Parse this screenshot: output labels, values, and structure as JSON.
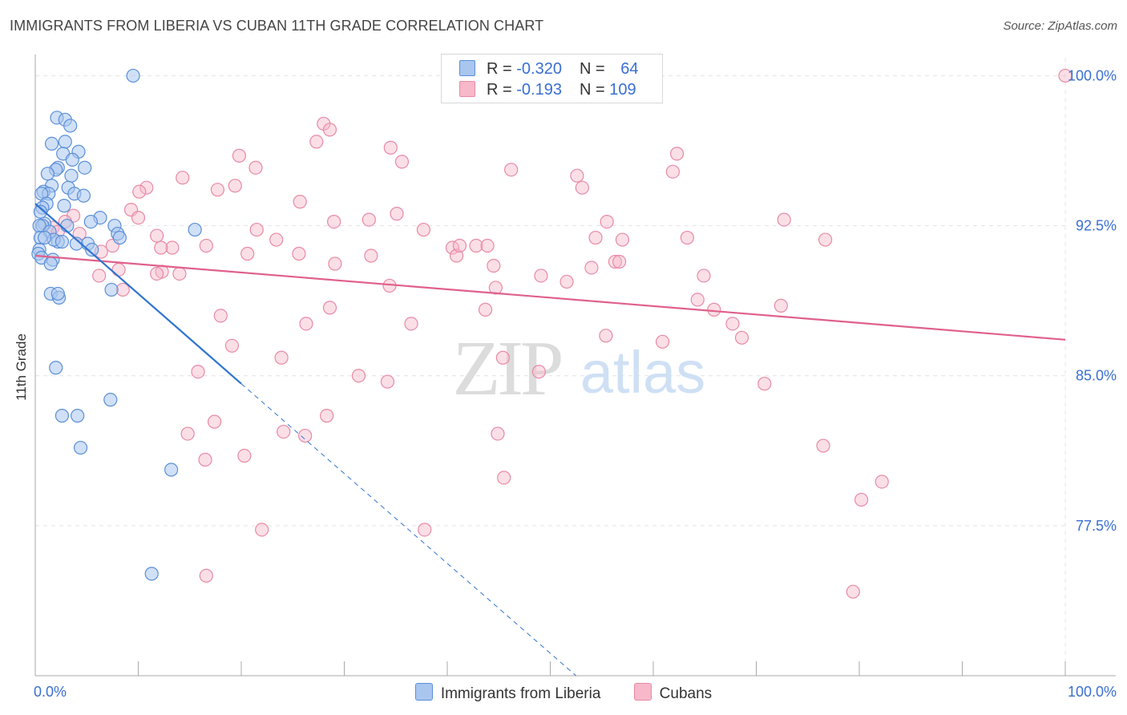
{
  "title": "IMMIGRANTS FROM LIBERIA VS CUBAN 11TH GRADE CORRELATION CHART",
  "source": "Source: ZipAtlas.com",
  "watermark": {
    "zip": "ZIP",
    "atlas": "atlas"
  },
  "colors": {
    "liberia_fill": "#a9c6ef",
    "liberia_stroke": "#5b8fd8",
    "liberia_line": "#2f74d0",
    "cuban_fill": "#f7b8ca",
    "cuban_stroke": "#e889a6",
    "cuban_line": "#e0608c",
    "axis_label": "#3a6fd1"
  },
  "legend": {
    "rows": [
      {
        "r_label": "R = ",
        "r_value": "-0.320",
        "n_label": "N = ",
        "n_value": "64"
      },
      {
        "r_label": "R = ",
        "r_value": "-0.193",
        "n_label": "N = ",
        "n_value": "109"
      }
    ]
  },
  "chart_data": {
    "type": "scatter",
    "title": "IMMIGRANTS FROM LIBERIA VS CUBAN 11TH GRADE CORRELATION CHART",
    "xlabel": "",
    "ylabel": "11th Grade",
    "xlim": [
      0,
      100
    ],
    "ylim": [
      70.0,
      101.3
    ],
    "x_tick_labels": [
      "0.0%",
      "100.0%"
    ],
    "y_ticks": [
      77.5,
      85.0,
      92.5,
      100.0
    ],
    "y_tick_labels": [
      "77.5%",
      "85.0%",
      "92.5%",
      "100.0%"
    ],
    "grid": true,
    "legend_position": "top-center",
    "series": [
      {
        "name": "Immigrants from Liberia",
        "R": -0.32,
        "N": 64,
        "trend": {
          "x": [
            0.0,
            20.0
          ],
          "y": [
            93.6,
            84.6
          ],
          "dashed_to": [
            52.5,
            70.0
          ]
        },
        "points": [
          [
            9.5,
            100.0
          ],
          [
            2.1,
            97.9
          ],
          [
            2.9,
            97.8
          ],
          [
            3.4,
            97.5
          ],
          [
            1.6,
            96.6
          ],
          [
            2.9,
            96.7
          ],
          [
            4.2,
            96.2
          ],
          [
            2.7,
            96.1
          ],
          [
            3.6,
            95.8
          ],
          [
            2.2,
            95.4
          ],
          [
            4.8,
            95.4
          ],
          [
            2.0,
            95.3
          ],
          [
            1.2,
            95.1
          ],
          [
            3.5,
            95.0
          ],
          [
            1.6,
            94.5
          ],
          [
            3.2,
            94.4
          ],
          [
            0.8,
            94.2
          ],
          [
            1.3,
            94.1
          ],
          [
            0.6,
            94.1
          ],
          [
            3.8,
            94.1
          ],
          [
            4.7,
            94.0
          ],
          [
            1.1,
            93.6
          ],
          [
            2.8,
            93.5
          ],
          [
            0.7,
            93.4
          ],
          [
            0.5,
            93.2
          ],
          [
            6.3,
            92.9
          ],
          [
            5.4,
            92.7
          ],
          [
            0.9,
            92.6
          ],
          [
            0.7,
            92.5
          ],
          [
            3.1,
            92.5
          ],
          [
            15.5,
            92.3
          ],
          [
            0.4,
            92.5
          ],
          [
            7.7,
            92.5
          ],
          [
            1.4,
            92.2
          ],
          [
            8.0,
            92.1
          ],
          [
            0.5,
            91.9
          ],
          [
            2.2,
            91.7
          ],
          [
            4.0,
            91.6
          ],
          [
            1.8,
            91.8
          ],
          [
            8.2,
            91.9
          ],
          [
            0.9,
            91.9
          ],
          [
            0.4,
            91.3
          ],
          [
            2.6,
            91.7
          ],
          [
            5.1,
            91.6
          ],
          [
            0.3,
            91.1
          ],
          [
            5.5,
            91.3
          ],
          [
            1.7,
            90.8
          ],
          [
            0.6,
            90.9
          ],
          [
            1.5,
            90.6
          ],
          [
            1.5,
            89.1
          ],
          [
            2.3,
            88.9
          ],
          [
            2.2,
            89.1
          ],
          [
            7.4,
            89.3
          ],
          [
            2.0,
            85.4
          ],
          [
            7.3,
            83.8
          ],
          [
            2.6,
            83.0
          ],
          [
            4.1,
            83.0
          ],
          [
            4.4,
            81.4
          ],
          [
            13.2,
            80.3
          ],
          [
            11.3,
            75.1
          ]
        ]
      },
      {
        "name": "Cubans",
        "R": -0.193,
        "N": 109,
        "trend": {
          "x": [
            0.0,
            100.0
          ],
          "y": [
            91.0,
            86.8
          ]
        },
        "points": [
          [
            100.0,
            100.0
          ],
          [
            28.0,
            97.6
          ],
          [
            28.6,
            97.3
          ],
          [
            27.3,
            96.7
          ],
          [
            34.5,
            96.4
          ],
          [
            62.3,
            96.1
          ],
          [
            19.8,
            96.0
          ],
          [
            35.6,
            95.7
          ],
          [
            21.4,
            95.4
          ],
          [
            46.2,
            95.3
          ],
          [
            61.9,
            95.2
          ],
          [
            52.6,
            95.0
          ],
          [
            14.3,
            94.9
          ],
          [
            19.4,
            94.5
          ],
          [
            10.8,
            94.4
          ],
          [
            17.7,
            94.3
          ],
          [
            53.1,
            94.4
          ],
          [
            10.1,
            94.2
          ],
          [
            25.7,
            93.7
          ],
          [
            9.3,
            93.3
          ],
          [
            35.1,
            93.1
          ],
          [
            10.0,
            92.9
          ],
          [
            3.7,
            93.0
          ],
          [
            72.7,
            92.8
          ],
          [
            29.0,
            92.7
          ],
          [
            55.5,
            92.7
          ],
          [
            32.4,
            92.8
          ],
          [
            2.9,
            92.7
          ],
          [
            1.7,
            92.4
          ],
          [
            21.5,
            92.3
          ],
          [
            37.7,
            92.3
          ],
          [
            2.2,
            92.2
          ],
          [
            4.3,
            92.1
          ],
          [
            11.8,
            92.0
          ],
          [
            23.4,
            91.8
          ],
          [
            54.4,
            91.9
          ],
          [
            57.0,
            91.8
          ],
          [
            63.3,
            91.9
          ],
          [
            76.7,
            91.8
          ],
          [
            40.5,
            91.4
          ],
          [
            42.8,
            91.5
          ],
          [
            43.9,
            91.5
          ],
          [
            16.6,
            91.5
          ],
          [
            7.5,
            91.5
          ],
          [
            13.3,
            91.4
          ],
          [
            6.4,
            91.2
          ],
          [
            12.2,
            91.4
          ],
          [
            25.6,
            91.1
          ],
          [
            20.6,
            91.1
          ],
          [
            32.6,
            91.0
          ],
          [
            40.9,
            91.0
          ],
          [
            56.3,
            90.7
          ],
          [
            29.1,
            90.6
          ],
          [
            44.5,
            90.5
          ],
          [
            8.1,
            90.3
          ],
          [
            12.3,
            90.2
          ],
          [
            11.8,
            90.1
          ],
          [
            14.0,
            90.1
          ],
          [
            49.1,
            90.0
          ],
          [
            6.2,
            90.0
          ],
          [
            64.9,
            90.0
          ],
          [
            51.6,
            89.7
          ],
          [
            34.4,
            89.5
          ],
          [
            44.7,
            89.4
          ],
          [
            8.5,
            89.3
          ],
          [
            64.3,
            88.8
          ],
          [
            72.4,
            88.5
          ],
          [
            43.7,
            88.3
          ],
          [
            28.6,
            88.4
          ],
          [
            65.9,
            88.3
          ],
          [
            18.0,
            88.0
          ],
          [
            67.7,
            87.6
          ],
          [
            26.3,
            87.6
          ],
          [
            36.5,
            87.6
          ],
          [
            55.4,
            87.0
          ],
          [
            68.6,
            86.9
          ],
          [
            60.9,
            86.7
          ],
          [
            19.1,
            86.5
          ],
          [
            23.9,
            85.9
          ],
          [
            45.4,
            85.9
          ],
          [
            15.8,
            85.2
          ],
          [
            31.4,
            85.0
          ],
          [
            34.2,
            84.7
          ],
          [
            48.9,
            85.2
          ],
          [
            70.8,
            84.6
          ],
          [
            28.3,
            83.0
          ],
          [
            17.4,
            82.7
          ],
          [
            24.1,
            82.2
          ],
          [
            14.8,
            82.1
          ],
          [
            44.9,
            82.1
          ],
          [
            26.2,
            82.0
          ],
          [
            76.5,
            81.5
          ],
          [
            20.3,
            81.0
          ],
          [
            16.5,
            80.8
          ],
          [
            45.5,
            79.9
          ],
          [
            82.2,
            79.7
          ],
          [
            80.2,
            78.8
          ],
          [
            22.0,
            77.3
          ],
          [
            37.8,
            77.3
          ],
          [
            16.6,
            75.0
          ],
          [
            79.4,
            74.2
          ],
          [
            41.2,
            91.5
          ],
          [
            56.7,
            90.7
          ],
          [
            54.0,
            90.4
          ]
        ]
      }
    ]
  }
}
